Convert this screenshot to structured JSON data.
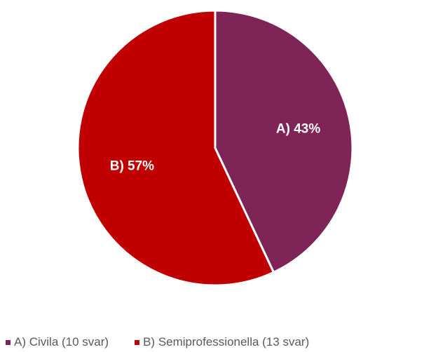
{
  "chart_data": {
    "type": "pie",
    "title": "",
    "slices": [
      {
        "label": "A)",
        "value": 43,
        "data_label": "A) 43%",
        "legend": "A) Civila (10 svar)",
        "color": "#7f2457"
      },
      {
        "label": "B)",
        "value": 57,
        "data_label": "B) 57%",
        "legend": "B) Semiprofessionella (13 svar)",
        "color": "#c00000"
      }
    ],
    "legend_position": "bottom",
    "start_angle": "12 o'clock",
    "direction": "clockwise"
  }
}
